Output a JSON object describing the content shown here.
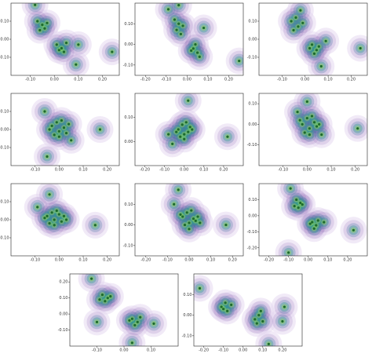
{
  "chart_data": [
    {
      "type": "scatter",
      "color": "#1d6b2b",
      "xlim": [
        -0.18,
        0.27
      ],
      "ylim": [
        -0.2,
        0.2
      ],
      "xticks": [
        {
          "value": -0.1,
          "label": "-0.10"
        },
        {
          "value": 0,
          "label": "0.00"
        },
        {
          "value": 0.1,
          "label": "0.10"
        },
        {
          "value": 0.2,
          "label": "0.20"
        }
      ],
      "yticks": [
        {
          "value": -0.1,
          "label": "-0.10"
        },
        {
          "value": 0,
          "label": "0.00"
        },
        {
          "value": 0.1,
          "label": "0.10"
        }
      ],
      "x": [
        -0.07,
        -0.05,
        -0.04,
        -0.06,
        -0.03,
        0.01,
        0.03,
        0.04,
        0.02,
        0.05,
        0.24,
        0.09,
        -0.08,
        0.1
      ],
      "y": [
        0.1,
        0.08,
        0.06,
        0.05,
        0.09,
        -0.03,
        -0.05,
        -0.07,
        -0.06,
        -0.02,
        -0.07,
        -0.14,
        0.19,
        -0.03
      ]
    },
    {
      "type": "scatter",
      "color": "#1d6b2b",
      "xlim": [
        -0.25,
        0.27
      ],
      "ylim": [
        -0.15,
        0.2
      ],
      "xticks": [
        {
          "value": -0.2,
          "label": "-0.20"
        },
        {
          "value": -0.1,
          "label": "-0.10"
        },
        {
          "value": 0,
          "label": "0.00"
        },
        {
          "value": 0.1,
          "label": "0.10"
        },
        {
          "value": 0.2,
          "label": "0.20"
        }
      ],
      "yticks": [
        {
          "value": -0.1,
          "label": "-0.10"
        },
        {
          "value": 0,
          "label": "0.00"
        },
        {
          "value": 0.1,
          "label": "0.10"
        }
      ],
      "x": [
        -0.06,
        -0.04,
        -0.05,
        -0.02,
        -0.03,
        0.03,
        0.05,
        0.04,
        0.06,
        0.02,
        0.25,
        -0.09,
        -0.04,
        0.08
      ],
      "y": [
        0.12,
        0.1,
        0.07,
        0.09,
        0.05,
        -0.02,
        -0.04,
        0.0,
        -0.06,
        -0.03,
        -0.08,
        0.17,
        0.19,
        0.08
      ]
    },
    {
      "type": "scatter",
      "color": "#1d6b2b",
      "xlim": [
        -0.2,
        0.27
      ],
      "ylim": [
        -0.2,
        0.2
      ],
      "xticks": [
        {
          "value": -0.1,
          "label": "-0.10"
        },
        {
          "value": 0,
          "label": "0.00"
        },
        {
          "value": 0.1,
          "label": "0.10"
        },
        {
          "value": 0.2,
          "label": "0.20"
        }
      ],
      "yticks": [
        {
          "value": -0.1,
          "label": "-0.10"
        },
        {
          "value": 0,
          "label": "0.00"
        },
        {
          "value": 0.1,
          "label": "0.10"
        }
      ],
      "x": [
        -0.06,
        -0.04,
        -0.03,
        -0.05,
        -0.01,
        0.03,
        0.05,
        0.04,
        0.06,
        0.02,
        0.24,
        -0.02,
        0.07,
        0.09
      ],
      "y": [
        0.1,
        0.12,
        0.07,
        0.05,
        0.09,
        -0.03,
        -0.06,
        -0.08,
        -0.04,
        -0.05,
        -0.05,
        0.16,
        -0.15,
        -0.01
      ]
    },
    {
      "type": "scatter",
      "color": "#1d6b2b",
      "xlim": [
        -0.2,
        0.25
      ],
      "ylim": [
        -0.2,
        0.2
      ],
      "xticks": [
        {
          "value": -0.1,
          "label": "-0.10"
        },
        {
          "value": 0,
          "label": "0.00"
        },
        {
          "value": 0.1,
          "label": "0.10"
        },
        {
          "value": 0.2,
          "label": "0.20"
        }
      ],
      "yticks": [
        {
          "value": -0.1,
          "label": "-0.10"
        },
        {
          "value": 0,
          "label": "0.00"
        },
        {
          "value": 0.1,
          "label": "0.10"
        }
      ],
      "x": [
        -0.03,
        -0.01,
        0.0,
        0.02,
        -0.02,
        0.01,
        0.03,
        -0.04,
        0.04,
        0.0,
        0.17,
        -0.06,
        -0.05,
        0.05
      ],
      "y": [
        0.02,
        0.04,
        -0.01,
        0.01,
        -0.03,
        0.05,
        -0.02,
        0.0,
        0.03,
        -0.04,
        0.0,
        0.1,
        -0.15,
        -0.06
      ]
    },
    {
      "type": "scatter",
      "color": "#1d6b2b",
      "xlim": [
        -0.25,
        0.3
      ],
      "ylim": [
        -0.1,
        0.2
      ],
      "xticks": [
        {
          "value": -0.2,
          "label": "-0.20"
        },
        {
          "value": -0.1,
          "label": "-0.10"
        },
        {
          "value": 0,
          "label": "0.00"
        },
        {
          "value": 0.1,
          "label": "0.10"
        },
        {
          "value": 0.2,
          "label": "0.20"
        }
      ],
      "yticks": [
        {
          "value": 0,
          "label": "0.00"
        },
        {
          "value": 0.1,
          "label": "0.10"
        }
      ],
      "x": [
        -0.03,
        -0.01,
        0.0,
        0.02,
        -0.02,
        0.01,
        0.03,
        -0.04,
        0.04,
        0.0,
        0.22,
        -0.08,
        0.02,
        -0.06
      ],
      "y": [
        0.05,
        0.07,
        0.03,
        0.04,
        0.02,
        0.08,
        0.06,
        0.04,
        0.05,
        0.01,
        0.02,
        0.03,
        0.17,
        -0.01
      ]
    },
    {
      "type": "scatter",
      "color": "#1d6b2b",
      "xlim": [
        -0.2,
        0.25
      ],
      "ylim": [
        -0.2,
        0.15
      ],
      "xticks": [
        {
          "value": -0.1,
          "label": "-0.10"
        },
        {
          "value": 0,
          "label": "0.00"
        },
        {
          "value": 0.1,
          "label": "0.10"
        },
        {
          "value": 0.2,
          "label": "0.20"
        }
      ],
      "yticks": [
        {
          "value": -0.1,
          "label": "-0.10"
        },
        {
          "value": 0,
          "label": "0.00"
        },
        {
          "value": 0.1,
          "label": "0.10"
        }
      ],
      "x": [
        -0.02,
        0.0,
        0.01,
        0.03,
        -0.01,
        0.02,
        0.04,
        -0.03,
        0.05,
        0.01,
        0.21,
        -0.04,
        0.0,
        0.06
      ],
      "y": [
        0.0,
        0.03,
        -0.02,
        0.01,
        -0.04,
        0.04,
        -0.01,
        0.02,
        0.0,
        -0.05,
        -0.02,
        0.06,
        0.11,
        -0.05
      ]
    },
    {
      "type": "scatter",
      "color": "#1d6b2b",
      "xlim": [
        -0.2,
        0.25
      ],
      "ylim": [
        -0.2,
        0.2
      ],
      "xticks": [
        {
          "value": -0.1,
          "label": "-0.10"
        },
        {
          "value": 0,
          "label": "0.00"
        },
        {
          "value": 0.1,
          "label": "0.10"
        },
        {
          "value": 0.2,
          "label": "0.20"
        }
      ],
      "yticks": [
        {
          "value": -0.1,
          "label": "-0.10"
        },
        {
          "value": 0,
          "label": "0.00"
        },
        {
          "value": 0.1,
          "label": "0.10"
        }
      ],
      "x": [
        -0.05,
        -0.03,
        -0.02,
        0.0,
        -0.04,
        -0.01,
        0.01,
        -0.06,
        0.02,
        -0.02,
        0.15,
        -0.09,
        -0.04,
        0.03
      ],
      "y": [
        0.02,
        0.04,
        0.0,
        0.03,
        -0.02,
        0.05,
        -0.01,
        0.01,
        0.02,
        -0.03,
        -0.03,
        0.07,
        0.14,
        0.0
      ]
    },
    {
      "type": "scatter",
      "color": "#1d6b2b",
      "xlim": [
        -0.25,
        0.25
      ],
      "ylim": [
        -0.15,
        0.2
      ],
      "xticks": [
        {
          "value": -0.2,
          "label": "-0.20"
        },
        {
          "value": -0.1,
          "label": "-0.10"
        },
        {
          "value": 0,
          "label": "0.00"
        },
        {
          "value": 0.1,
          "label": "0.10"
        },
        {
          "value": 0.2,
          "label": "0.20"
        }
      ],
      "yticks": [
        {
          "value": -0.1,
          "label": "-0.10"
        },
        {
          "value": 0,
          "label": "0.00"
        },
        {
          "value": 0.1,
          "label": "0.10"
        }
      ],
      "x": [
        -0.03,
        -0.01,
        0.0,
        0.02,
        -0.02,
        0.01,
        0.03,
        -0.04,
        0.04,
        0.0,
        0.17,
        -0.07,
        -0.05,
        0.05
      ],
      "y": [
        0.04,
        0.06,
        0.01,
        0.03,
        0.0,
        0.07,
        0.02,
        0.05,
        0.04,
        -0.02,
        0.0,
        0.1,
        0.17,
        0.01
      ]
    },
    {
      "type": "scatter",
      "color": "#1d6b2b",
      "xlim": [
        -0.25,
        0.3
      ],
      "ylim": [
        -0.25,
        0.2
      ],
      "xticks": [
        {
          "value": -0.2,
          "label": "-0.20"
        },
        {
          "value": -0.1,
          "label": "-0.10"
        },
        {
          "value": 0,
          "label": "0.00"
        },
        {
          "value": 0.1,
          "label": "0.10"
        },
        {
          "value": 0.2,
          "label": "0.20"
        }
      ],
      "yticks": [
        {
          "value": -0.2,
          "label": "-0.20"
        },
        {
          "value": -0.1,
          "label": "-0.10"
        },
        {
          "value": 0,
          "label": "0.00"
        },
        {
          "value": 0.1,
          "label": "0.10"
        }
      ],
      "x": [
        -0.06,
        -0.04,
        -0.05,
        -0.03,
        -0.07,
        0.02,
        0.04,
        0.03,
        0.05,
        0.01,
        0.23,
        -0.09,
        -0.1,
        0.08
      ],
      "y": [
        0.1,
        0.08,
        0.05,
        0.07,
        0.06,
        -0.04,
        -0.06,
        -0.08,
        -0.03,
        -0.05,
        -0.09,
        0.17,
        -0.23,
        -0.04
      ]
    },
    {
      "type": "scatter",
      "color": "#1d6b2b",
      "xlim": [
        -0.2,
        0.2
      ],
      "ylim": [
        -0.2,
        0.25
      ],
      "xticks": [
        {
          "value": -0.1,
          "label": "-0.10"
        },
        {
          "value": 0,
          "label": "0.00"
        },
        {
          "value": 0.1,
          "label": "0.10"
        }
      ],
      "yticks": [
        {
          "value": -0.1,
          "label": "-0.10"
        },
        {
          "value": 0,
          "label": "0.00"
        },
        {
          "value": 0.1,
          "label": "0.10"
        },
        {
          "value": 0.2,
          "label": "0.20"
        }
      ],
      "x": [
        -0.08,
        -0.06,
        -0.07,
        -0.05,
        -0.09,
        0.03,
        0.05,
        0.04,
        0.06,
        0.02,
        -0.12,
        -0.1,
        0.11,
        0.03
      ],
      "y": [
        0.12,
        0.1,
        0.08,
        0.11,
        0.09,
        -0.03,
        -0.05,
        -0.07,
        -0.02,
        -0.04,
        0.22,
        -0.05,
        -0.06,
        -0.18
      ]
    },
    {
      "type": "scatter",
      "color": "#1d6b2b",
      "xlim": [
        -0.25,
        0.3
      ],
      "ylim": [
        -0.15,
        0.2
      ],
      "xticks": [
        {
          "value": -0.2,
          "label": "-0.20"
        },
        {
          "value": -0.1,
          "label": "-0.10"
        },
        {
          "value": 0,
          "label": "0.00"
        },
        {
          "value": 0.1,
          "label": "0.10"
        },
        {
          "value": 0.2,
          "label": "0.20"
        }
      ],
      "yticks": [
        {
          "value": -0.1,
          "label": "-0.10"
        },
        {
          "value": 0,
          "label": "0.00"
        },
        {
          "value": 0.1,
          "label": "0.10"
        }
      ],
      "x": [
        -0.11,
        -0.09,
        -0.08,
        -0.1,
        -0.06,
        0.06,
        0.08,
        0.1,
        0.09,
        0.07,
        -0.22,
        0.2,
        0.21,
        0.13
      ],
      "y": [
        0.04,
        0.06,
        0.02,
        0.03,
        0.05,
        -0.02,
        0.0,
        -0.03,
        0.02,
        -0.04,
        0.13,
        -0.03,
        0.04,
        -0.14
      ]
    }
  ]
}
